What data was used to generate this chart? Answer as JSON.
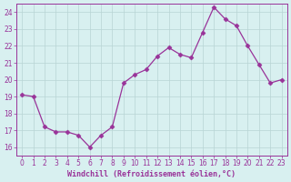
{
  "x": [
    0,
    1,
    2,
    3,
    4,
    5,
    6,
    7,
    8,
    9,
    10,
    11,
    12,
    13,
    14,
    15,
    16,
    17,
    18,
    19,
    20,
    21,
    22,
    23
  ],
  "y": [
    19.1,
    19.0,
    17.2,
    16.9,
    16.9,
    16.7,
    16.0,
    16.7,
    17.2,
    19.8,
    20.3,
    20.6,
    21.4,
    21.9,
    21.5,
    21.3,
    22.8,
    24.3,
    23.6,
    23.2,
    22.0,
    20.9,
    19.8,
    20.0
  ],
  "line_color": "#993399",
  "marker": "D",
  "marker_size": 2.5,
  "bg_color": "#d8f0f0",
  "grid_color": "#b8d4d4",
  "xlabel": "Windchill (Refroidissement éolien,°C)",
  "xlim": [
    -0.5,
    23.5
  ],
  "ylim": [
    15.5,
    24.5
  ],
  "yticks": [
    16,
    17,
    18,
    19,
    20,
    21,
    22,
    23,
    24
  ],
  "xticks": [
    0,
    1,
    2,
    3,
    4,
    5,
    6,
    7,
    8,
    9,
    10,
    11,
    12,
    13,
    14,
    15,
    16,
    17,
    18,
    19,
    20,
    21,
    22,
    23
  ],
  "tick_color": "#993399",
  "label_fontsize": 6,
  "tick_fontsize": 5.5,
  "spine_color": "#993399"
}
